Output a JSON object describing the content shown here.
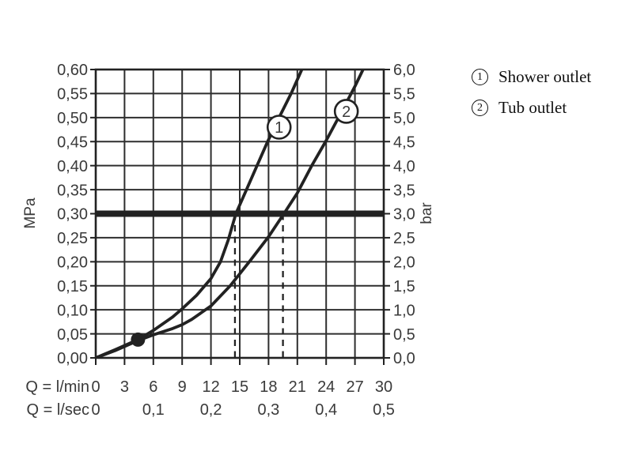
{
  "colors": {
    "background": "#ffffff",
    "ink": "#222222",
    "grid": "#2e2e2e",
    "text": "#3a3a3a",
    "marker_fill": "#ffffff"
  },
  "legend": {
    "items": [
      {
        "symbol": "1",
        "label": "Shower outlet"
      },
      {
        "symbol": "2",
        "label": "Tub outlet"
      }
    ]
  },
  "chart_data": {
    "type": "line",
    "title": "",
    "grid": true,
    "x_axis": {
      "label_primary": "Q = l/min",
      "range_lmin": [
        0,
        30
      ],
      "ticks_primary": [
        "0",
        "3",
        "6",
        "9",
        "12",
        "15",
        "18",
        "21",
        "24",
        "27",
        "30"
      ],
      "label_secondary": "Q = l/sec",
      "ticks_secondary": [
        {
          "label": "0",
          "q_lmin": 0
        },
        {
          "label": "0,1",
          "q_lmin": 6
        },
        {
          "label": "0,2",
          "q_lmin": 12
        },
        {
          "label": "0,3",
          "q_lmin": 18
        },
        {
          "label": "0,4",
          "q_lmin": 24
        },
        {
          "label": "0,5",
          "q_lmin": 30
        }
      ]
    },
    "y_axis_left": {
      "label": "MPa",
      "range_mpa": [
        0,
        0.6
      ],
      "ticks": [
        "0,00",
        "0,05",
        "0,10",
        "0,15",
        "0,20",
        "0,25",
        "0,30",
        "0,35",
        "0,40",
        "0,45",
        "0,50",
        "0,55",
        "0,60"
      ]
    },
    "y_axis_right": {
      "label": "bar",
      "range_bar": [
        0,
        6
      ],
      "ticks": [
        "0,0",
        "0,5",
        "1,0",
        "1,5",
        "2,0",
        "2,5",
        "3,0",
        "3,5",
        "4,0",
        "4,5",
        "5,0",
        "5,5",
        "6,0"
      ]
    },
    "series": [
      {
        "name": "Shower outlet",
        "marker": "1",
        "marker_pos": [
          19.1,
          0.48
        ],
        "points": [
          [
            0,
            0
          ],
          [
            2,
            0.017
          ],
          [
            4.4,
            0.038
          ],
          [
            6,
            0.057
          ],
          [
            8,
            0.085
          ],
          [
            9,
            0.102
          ],
          [
            10.5,
            0.13
          ],
          [
            12,
            0.165
          ],
          [
            13,
            0.2
          ],
          [
            13.8,
            0.245
          ],
          [
            14.6,
            0.3
          ],
          [
            15.7,
            0.35
          ],
          [
            16.8,
            0.4
          ],
          [
            17.9,
            0.45
          ],
          [
            19.1,
            0.5
          ],
          [
            20.4,
            0.552
          ],
          [
            21.8,
            0.615
          ]
        ]
      },
      {
        "name": "Tub outlet",
        "marker": "2",
        "marker_pos": [
          26.1,
          0.513
        ],
        "points": [
          [
            0,
            0
          ],
          [
            2,
            0.015
          ],
          [
            4.4,
            0.036
          ],
          [
            6,
            0.048
          ],
          [
            8,
            0.061
          ],
          [
            9,
            0.069
          ],
          [
            10,
            0.08
          ],
          [
            12,
            0.108
          ],
          [
            14,
            0.15
          ],
          [
            16,
            0.2
          ],
          [
            18,
            0.252
          ],
          [
            19.6,
            0.3
          ],
          [
            21,
            0.343
          ],
          [
            22.5,
            0.4
          ],
          [
            24,
            0.452
          ],
          [
            25.5,
            0.508
          ],
          [
            27,
            0.565
          ],
          [
            28.2,
            0.615
          ]
        ]
      }
    ],
    "reference_line": {
      "p_mpa": 0.3,
      "p_bar": 3.0
    },
    "dashed_lines_at_lmin": [
      14.5,
      19.5
    ],
    "dot_point": {
      "q_lmin": 4.4,
      "p_mpa": 0.038
    }
  }
}
